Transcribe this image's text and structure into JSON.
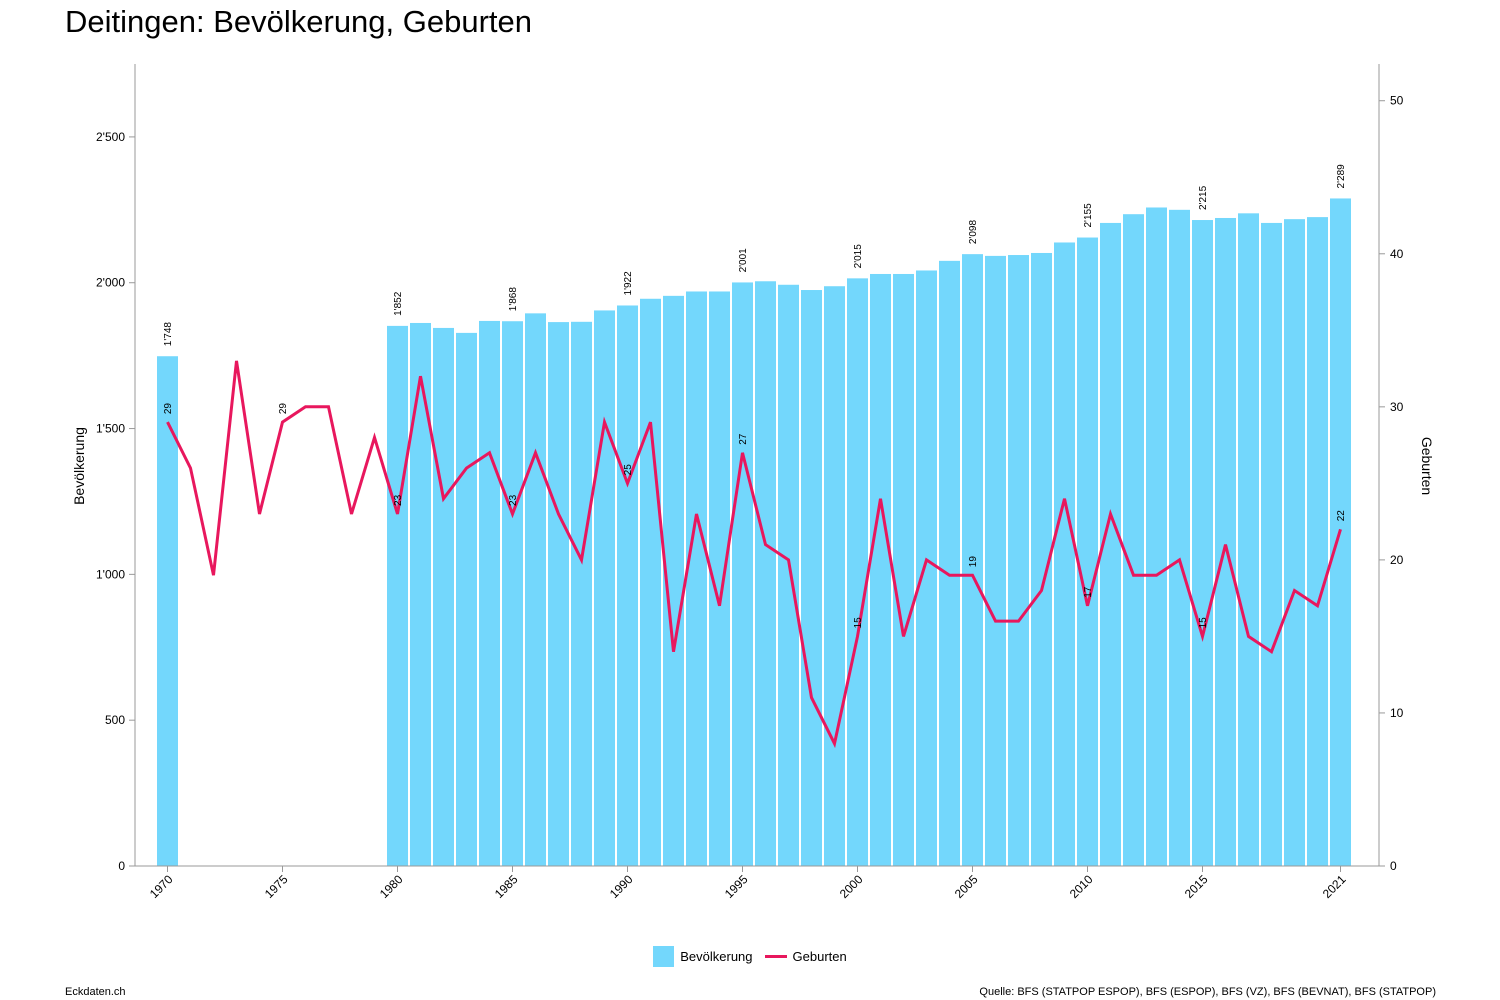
{
  "chart_data": {
    "type": "bar",
    "title": "Deitingen: Bevölkerung, Geburten",
    "ylabel": "Bevölkerung",
    "y2label": "Geburten",
    "ylim": [
      0,
      2750
    ],
    "y2lim": [
      0,
      52.4
    ],
    "yticks": [
      0,
      500,
      1000,
      1500,
      2000,
      2500
    ],
    "yticklabels": [
      "0",
      "500",
      "1'000",
      "1'500",
      "2'000",
      "2'500"
    ],
    "y2ticks": [
      0,
      10,
      20,
      30,
      40,
      50
    ],
    "y2ticklabels": [
      "0",
      "10",
      "20",
      "30",
      "40",
      "50"
    ],
    "xticks": [
      1970,
      1975,
      1980,
      1985,
      1990,
      1995,
      2000,
      2005,
      2010,
      2015,
      2021
    ],
    "xticklabels": [
      "1970",
      "1975",
      "1980",
      "1985",
      "1990",
      "1995",
      "2000",
      "2005",
      "2010",
      "2015",
      "2021"
    ],
    "legend_position": "bottom-center",
    "grid": false,
    "series": [
      {
        "name": "Bevölkerung",
        "type": "bar",
        "axis": "left",
        "color": "#73d7fc",
        "x": [
          1970,
          1980,
          1981,
          1982,
          1983,
          1984,
          1985,
          1986,
          1987,
          1988,
          1989,
          1990,
          1991,
          1992,
          1993,
          1994,
          1995,
          1996,
          1997,
          1998,
          1999,
          2000,
          2001,
          2002,
          2003,
          2004,
          2005,
          2006,
          2007,
          2008,
          2009,
          2010,
          2011,
          2012,
          2013,
          2014,
          2015,
          2016,
          2017,
          2018,
          2019,
          2020,
          2021
        ],
        "values": [
          1748,
          1852,
          1862,
          1845,
          1828,
          1869,
          1868,
          1895,
          1865,
          1866,
          1905,
          1922,
          1945,
          1955,
          1970,
          1970,
          2001,
          2005,
          1993,
          1975,
          1988,
          2015,
          2030,
          2030,
          2042,
          2075,
          2098,
          2092,
          2095,
          2102,
          2138,
          2155,
          2205,
          2235,
          2258,
          2250,
          2215,
          2222,
          2238,
          2205,
          2218,
          2225,
          2289
        ],
        "labels": [
          {
            "x": 1970,
            "text": "1'748"
          },
          {
            "x": 1980,
            "text": "1'852"
          },
          {
            "x": 1985,
            "text": "1'868"
          },
          {
            "x": 1990,
            "text": "1'922"
          },
          {
            "x": 1995,
            "text": "2'001"
          },
          {
            "x": 2000,
            "text": "2'015"
          },
          {
            "x": 2005,
            "text": "2'098"
          },
          {
            "x": 2010,
            "text": "2'155"
          },
          {
            "x": 2015,
            "text": "2'215"
          },
          {
            "x": 2021,
            "text": "2'289"
          }
        ]
      },
      {
        "name": "Geburten",
        "type": "line",
        "axis": "right",
        "color": "#e8175d",
        "x": [
          1970,
          1971,
          1972,
          1973,
          1974,
          1975,
          1976,
          1977,
          1978,
          1979,
          1980,
          1981,
          1982,
          1983,
          1984,
          1985,
          1986,
          1987,
          1988,
          1989,
          1990,
          1991,
          1992,
          1993,
          1994,
          1995,
          1996,
          1997,
          1998,
          1999,
          2000,
          2001,
          2002,
          2003,
          2004,
          2005,
          2006,
          2007,
          2008,
          2009,
          2010,
          2011,
          2012,
          2013,
          2014,
          2015,
          2016,
          2017,
          2018,
          2019,
          2020,
          2021
        ],
        "values": [
          29,
          26,
          19,
          33,
          23,
          29,
          30,
          30,
          23,
          28,
          23,
          32,
          24,
          26,
          27,
          23,
          27,
          23,
          20,
          29,
          25,
          29,
          14,
          23,
          17,
          27,
          21,
          20,
          11,
          8,
          15,
          24,
          15,
          20,
          19,
          19,
          16,
          16,
          18,
          24,
          17,
          23,
          19,
          19,
          20,
          15,
          21,
          15,
          14,
          18,
          17,
          22
        ],
        "labels": [
          {
            "x": 1970,
            "text": "29"
          },
          {
            "x": 1975,
            "text": "29"
          },
          {
            "x": 1980,
            "text": "23"
          },
          {
            "x": 1985,
            "text": "23"
          },
          {
            "x": 1990,
            "text": "25"
          },
          {
            "x": 1995,
            "text": "27"
          },
          {
            "x": 2000,
            "text": "15"
          },
          {
            "x": 2005,
            "text": "19"
          },
          {
            "x": 2010,
            "text": "17"
          },
          {
            "x": 2015,
            "text": "15"
          },
          {
            "x": 2021,
            "text": "22"
          }
        ]
      }
    ]
  },
  "footer": {
    "left": "Eckdaten.ch",
    "right": "Quelle: BFS (STATPOP ESPOP), BFS (ESPOP), BFS (VZ), BFS (BEVNAT), BFS (STATPOP)"
  }
}
